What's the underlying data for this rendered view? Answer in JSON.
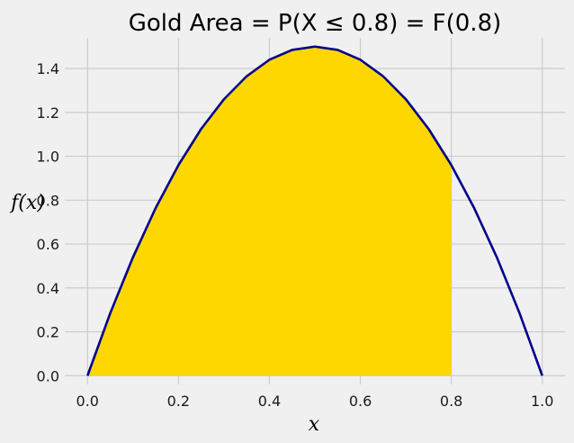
{
  "chart_data": {
    "type": "area",
    "title": "Gold Area  = P(X ≤ 0.8) = F(0.8)",
    "xlabel": "x",
    "ylabel": "f(x)",
    "xlim": [
      -0.05,
      1.05
    ],
    "ylim": [
      -0.04,
      1.54
    ],
    "x_ticks": [
      0.0,
      0.2,
      0.4,
      0.6,
      0.8,
      1.0
    ],
    "y_ticks": [
      0.0,
      0.2,
      0.4,
      0.6,
      0.8,
      1.0,
      1.2,
      1.4
    ],
    "x_tick_labels": [
      "0.0",
      "0.2",
      "0.4",
      "0.6",
      "0.8",
      "1.0"
    ],
    "y_tick_labels": [
      "0.0",
      "0.2",
      "0.4",
      "0.6",
      "0.8",
      "1.0",
      "1.2",
      "1.4"
    ],
    "grid": true,
    "series": [
      {
        "kind": "line",
        "color": "#00008b",
        "x": [
          0.0,
          0.05,
          0.1,
          0.15,
          0.2,
          0.25,
          0.3,
          0.35,
          0.4,
          0.45,
          0.5,
          0.55,
          0.6,
          0.65,
          0.7,
          0.75,
          0.8,
          0.85,
          0.9,
          0.95,
          1.0
        ],
        "y": [
          0.0,
          0.285,
          0.54,
          0.765,
          0.96,
          1.125,
          1.26,
          1.365,
          1.44,
          1.485,
          1.5,
          1.485,
          1.44,
          1.365,
          1.26,
          1.125,
          0.96,
          0.765,
          0.54,
          0.285,
          0.0
        ]
      },
      {
        "kind": "filled-area",
        "color": "#ffd700",
        "x": [
          0.0,
          0.05,
          0.1,
          0.15,
          0.2,
          0.25,
          0.3,
          0.35,
          0.4,
          0.45,
          0.5,
          0.55,
          0.6,
          0.65,
          0.7,
          0.75,
          0.8
        ],
        "y": [
          0.0,
          0.285,
          0.54,
          0.765,
          0.96,
          1.125,
          1.26,
          1.365,
          1.44,
          1.485,
          1.5,
          1.485,
          1.44,
          1.365,
          1.26,
          1.125,
          0.96
        ]
      }
    ]
  }
}
